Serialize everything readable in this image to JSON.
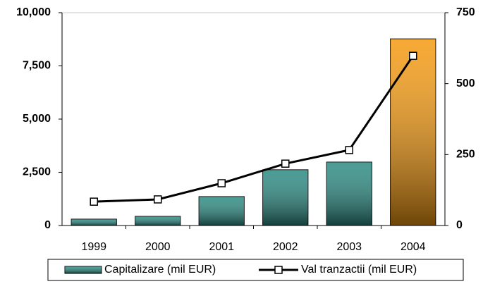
{
  "chart_data": {
    "type": "bar_line",
    "categories": [
      "1999",
      "2000",
      "2001",
      "2002",
      "2003",
      "2004"
    ],
    "series": [
      {
        "name": "Capitalizare (mil EUR)",
        "type": "bar",
        "color": "#2a8a82",
        "colors": [
          "#2a8a82",
          "#2a8a82",
          "#2a8a82",
          "#2a8a82",
          "#2a8a82",
          "#f59a10"
        ],
        "values": [
          300,
          430,
          1360,
          2620,
          2980,
          8770
        ]
      },
      {
        "name": "Val tranzactii (mil EUR)",
        "type": "line",
        "axis": "y2",
        "color": "#000000",
        "values": [
          84,
          92,
          149,
          218,
          266,
          598
        ]
      }
    ],
    "ylim": [
      0,
      10000
    ],
    "yticks": [
      0,
      {
        "value": 2500,
        "label": "2,500"
      },
      {
        "value": 5000,
        "label": "5,000"
      },
      {
        "value": 7500,
        "label": "7,500"
      },
      {
        "value": 10000,
        "label": "10,000"
      }
    ],
    "y2lim": [
      0,
      750
    ],
    "y2ticks": [
      0,
      250,
      500,
      750
    ],
    "legend": "bottom",
    "grid": false
  }
}
